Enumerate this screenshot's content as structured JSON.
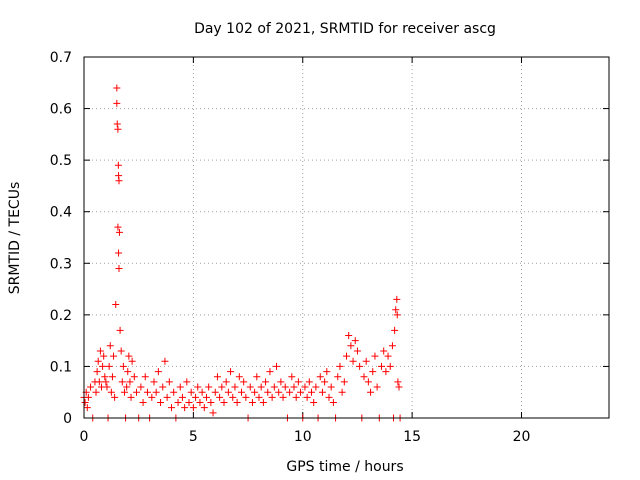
{
  "chart_data": {
    "type": "scatter",
    "title": "Day 102 of 2021, SRMTID for receiver ascg",
    "xlabel": "GPS time / hours",
    "ylabel": "SRMTID / TECUs",
    "xlim": [
      0,
      24
    ],
    "ylim": [
      0,
      0.7
    ],
    "xticks": [
      0,
      5,
      10,
      15,
      20
    ],
    "yticks": [
      0,
      0.1,
      0.2,
      0.3,
      0.4,
      0.5,
      0.6,
      0.7
    ],
    "ytick_labels": [
      "0",
      "0.1",
      "0.2",
      "0.3",
      "0.4",
      "0.5",
      "0.6",
      "0.7"
    ],
    "grid": true,
    "marker": "+",
    "color": "#ff0000",
    "series": [
      {
        "name": "SRMTID",
        "points": [
          [
            0.0,
            0.04
          ],
          [
            0.05,
            0.03
          ],
          [
            0.1,
            0.05
          ],
          [
            0.15,
            0.02
          ],
          [
            0.2,
            0.04
          ],
          [
            0.3,
            0.06
          ],
          [
            0.4,
            0.0
          ],
          [
            0.5,
            0.07
          ],
          [
            0.55,
            0.05
          ],
          [
            0.6,
            0.09
          ],
          [
            0.65,
            0.11
          ],
          [
            0.7,
            0.07
          ],
          [
            0.75,
            0.13
          ],
          [
            0.8,
            0.06
          ],
          [
            0.85,
            0.1
          ],
          [
            0.9,
            0.12
          ],
          [
            0.95,
            0.08
          ],
          [
            1.0,
            0.07
          ],
          [
            1.05,
            0.06
          ],
          [
            1.1,
            0.0
          ],
          [
            1.15,
            0.1
          ],
          [
            1.2,
            0.14
          ],
          [
            1.25,
            0.05
          ],
          [
            1.3,
            0.08
          ],
          [
            1.35,
            0.12
          ],
          [
            1.4,
            0.04
          ],
          [
            1.45,
            0.22
          ],
          [
            1.5,
            0.64
          ],
          [
            1.5,
            0.61
          ],
          [
            1.52,
            0.57
          ],
          [
            1.55,
            0.56
          ],
          [
            1.57,
            0.49
          ],
          [
            1.58,
            0.47
          ],
          [
            1.6,
            0.46
          ],
          [
            1.55,
            0.37
          ],
          [
            1.58,
            0.32
          ],
          [
            1.6,
            0.29
          ],
          [
            1.62,
            0.36
          ],
          [
            1.65,
            0.17
          ],
          [
            1.7,
            0.13
          ],
          [
            1.75,
            0.07
          ],
          [
            1.8,
            0.1
          ],
          [
            1.85,
            0.05
          ],
          [
            1.9,
            0.0
          ],
          [
            1.95,
            0.06
          ],
          [
            2.0,
            0.09
          ],
          [
            2.05,
            0.12
          ],
          [
            2.1,
            0.07
          ],
          [
            2.15,
            0.04
          ],
          [
            2.2,
            0.11
          ],
          [
            2.3,
            0.08
          ],
          [
            2.4,
            0.05
          ],
          [
            2.5,
            0.0
          ],
          [
            2.6,
            0.06
          ],
          [
            2.7,
            0.03
          ],
          [
            2.8,
            0.08
          ],
          [
            2.9,
            0.05
          ],
          [
            3.0,
            0.0
          ],
          [
            3.1,
            0.04
          ],
          [
            3.2,
            0.07
          ],
          [
            3.3,
            0.05
          ],
          [
            3.4,
            0.09
          ],
          [
            3.5,
            0.03
          ],
          [
            3.6,
            0.06
          ],
          [
            3.7,
            0.11
          ],
          [
            3.8,
            0.04
          ],
          [
            3.9,
            0.07
          ],
          [
            4.0,
            0.02
          ],
          [
            4.1,
            0.05
          ],
          [
            4.2,
            0.0
          ],
          [
            4.3,
            0.03
          ],
          [
            4.4,
            0.06
          ],
          [
            4.5,
            0.04
          ],
          [
            4.6,
            0.02
          ],
          [
            4.7,
            0.07
          ],
          [
            4.8,
            0.03
          ],
          [
            4.9,
            0.05
          ],
          [
            5.0,
            0.02
          ],
          [
            5.1,
            0.04
          ],
          [
            5.2,
            0.06
          ],
          [
            5.3,
            0.03
          ],
          [
            5.4,
            0.05
          ],
          [
            5.5,
            0.02
          ],
          [
            5.6,
            0.04
          ],
          [
            5.7,
            0.06
          ],
          [
            5.8,
            0.03
          ],
          [
            5.9,
            0.01
          ],
          [
            6.0,
            0.05
          ],
          [
            6.1,
            0.08
          ],
          [
            6.2,
            0.04
          ],
          [
            6.3,
            0.06
          ],
          [
            6.4,
            0.03
          ],
          [
            6.5,
            0.07
          ],
          [
            6.6,
            0.05
          ],
          [
            6.7,
            0.09
          ],
          [
            6.8,
            0.04
          ],
          [
            6.9,
            0.06
          ],
          [
            7.0,
            0.03
          ],
          [
            7.1,
            0.08
          ],
          [
            7.2,
            0.05
          ],
          [
            7.3,
            0.07
          ],
          [
            7.4,
            0.04
          ],
          [
            7.5,
            0.0
          ],
          [
            7.6,
            0.06
          ],
          [
            7.7,
            0.03
          ],
          [
            7.8,
            0.05
          ],
          [
            7.9,
            0.08
          ],
          [
            8.0,
            0.04
          ],
          [
            8.1,
            0.06
          ],
          [
            8.2,
            0.03
          ],
          [
            8.3,
            0.07
          ],
          [
            8.4,
            0.05
          ],
          [
            8.5,
            0.09
          ],
          [
            8.6,
            0.04
          ],
          [
            8.7,
            0.06
          ],
          [
            8.8,
            0.1
          ],
          [
            8.9,
            0.05
          ],
          [
            9.0,
            0.07
          ],
          [
            9.1,
            0.04
          ],
          [
            9.2,
            0.06
          ],
          [
            9.3,
            0.0
          ],
          [
            9.4,
            0.05
          ],
          [
            9.5,
            0.08
          ],
          [
            9.6,
            0.06
          ],
          [
            9.7,
            0.04
          ],
          [
            9.8,
            0.07
          ],
          [
            9.9,
            0.05
          ],
          [
            10.0,
            0.0
          ],
          [
            10.1,
            0.06
          ],
          [
            10.2,
            0.04
          ],
          [
            10.3,
            0.07
          ],
          [
            10.4,
            0.05
          ],
          [
            10.5,
            0.03
          ],
          [
            10.6,
            0.06
          ],
          [
            10.7,
            0.0
          ],
          [
            10.8,
            0.08
          ],
          [
            10.9,
            0.05
          ],
          [
            11.0,
            0.07
          ],
          [
            11.1,
            0.09
          ],
          [
            11.2,
            0.04
          ],
          [
            11.3,
            0.06
          ],
          [
            11.4,
            0.03
          ],
          [
            11.5,
            0.0
          ],
          [
            11.6,
            0.08
          ],
          [
            11.7,
            0.1
          ],
          [
            11.8,
            0.05
          ],
          [
            11.9,
            0.07
          ],
          [
            12.0,
            0.12
          ],
          [
            12.1,
            0.16
          ],
          [
            12.2,
            0.14
          ],
          [
            12.3,
            0.11
          ],
          [
            12.4,
            0.15
          ],
          [
            12.5,
            0.13
          ],
          [
            12.6,
            0.1
          ],
          [
            12.7,
            0.0
          ],
          [
            12.8,
            0.08
          ],
          [
            12.9,
            0.11
          ],
          [
            13.0,
            0.07
          ],
          [
            13.1,
            0.05
          ],
          [
            13.2,
            0.09
          ],
          [
            13.3,
            0.12
          ],
          [
            13.4,
            0.06
          ],
          [
            13.5,
            0.0
          ],
          [
            13.6,
            0.1
          ],
          [
            13.7,
            0.13
          ],
          [
            13.8,
            0.09
          ],
          [
            13.9,
            0.12
          ],
          [
            14.0,
            0.1
          ],
          [
            14.1,
            0.14
          ],
          [
            14.15,
            0.0
          ],
          [
            14.2,
            0.17
          ],
          [
            14.25,
            0.21
          ],
          [
            14.3,
            0.23
          ],
          [
            14.32,
            0.2
          ],
          [
            14.35,
            0.07
          ],
          [
            14.4,
            0.06
          ],
          [
            14.45,
            0.0
          ]
        ]
      }
    ]
  }
}
